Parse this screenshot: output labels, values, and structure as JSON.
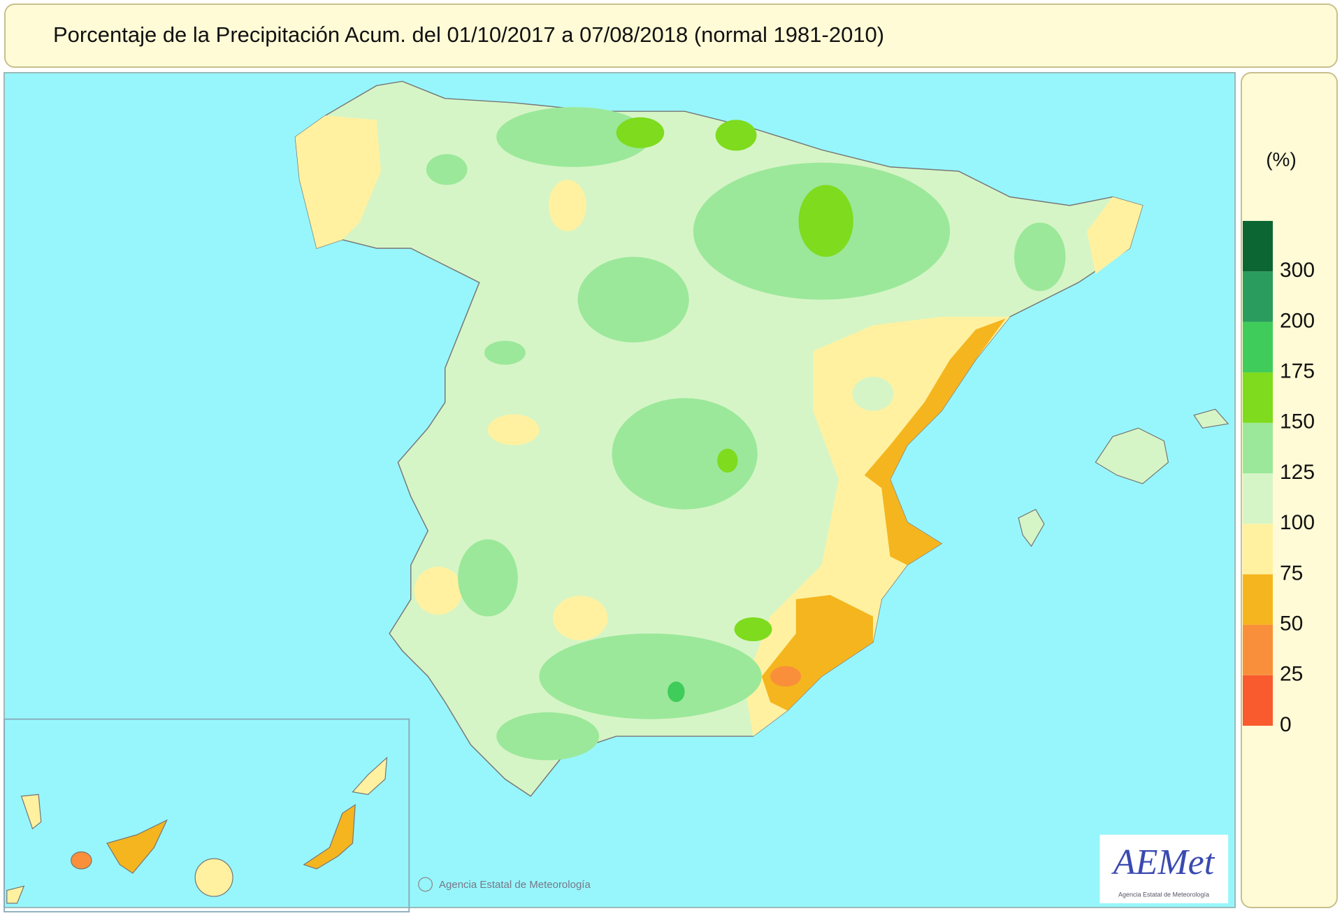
{
  "title": "Porcentaje de la Precipitación Acum. del 01/10/2017 a  07/08/2018  (normal 1981-2010)",
  "legend": {
    "unit": "(%)",
    "ticks": [
      0,
      25,
      50,
      75,
      100,
      125,
      150,
      175,
      200,
      300
    ],
    "colors": [
      "#f95a2e",
      "#f98f3a",
      "#f5b51e",
      "#fff1a0",
      "#d6f5c6",
      "#9be89a",
      "#7edb1e",
      "#3fcc5a",
      "#2a9c5e",
      "#0b6634"
    ]
  },
  "copyright": "Agencia Estatal de Meteorología",
  "logo": {
    "name": "AEMet",
    "subtitle": "Agencia Estatal de Meteorología"
  }
}
